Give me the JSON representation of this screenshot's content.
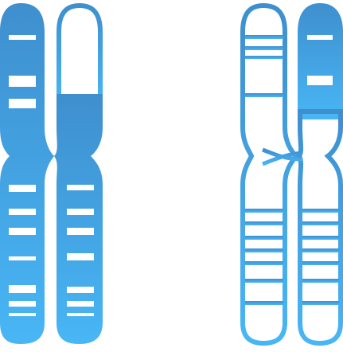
{
  "image": {
    "description_items": [
      {
        "name": "chromosome-pair-filled",
        "style": "filled"
      },
      {
        "name": "chromosome-pair-outline",
        "style": "outline"
      }
    ]
  },
  "colors": {
    "gradient_top": "#3f8fce",
    "gradient_bottom": "#48b6f5",
    "band": "#ffffff",
    "background": "#ffffff"
  }
}
